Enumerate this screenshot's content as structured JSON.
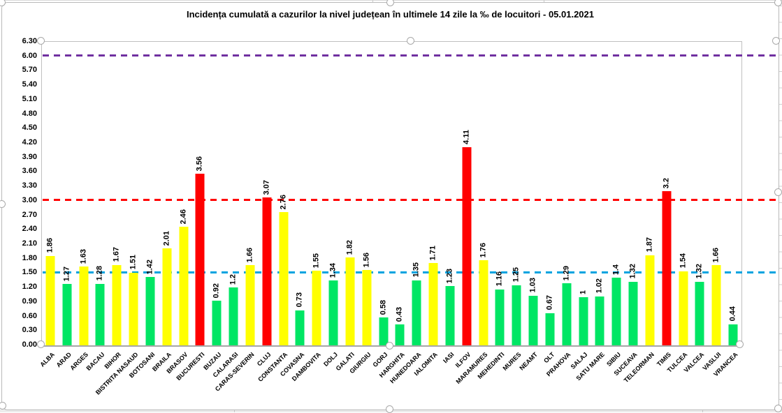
{
  "chart_data": {
    "type": "bar",
    "title": "Incidența cumulată a cazurilor la nivel județean în ultimele 14 zile la ‰ de locuitori - 05.01.2021",
    "xlabel": "",
    "ylabel": "",
    "ylim": [
      0,
      6.3
    ],
    "ytick_step": 0.3,
    "grid": false,
    "legend": false,
    "categories": [
      "ALBA",
      "ARAD",
      "ARGES",
      "BACAU",
      "BIHOR",
      "BISTRITA NASAUD",
      "BOTOSANI",
      "BRAILA",
      "BRASOV",
      "BUCURESTI",
      "BUZAU",
      "CALARASI",
      "CARAS-SEVERIN",
      "CLUJ",
      "CONSTANTA",
      "COVASNA",
      "DAMBOVITA",
      "DOLJ",
      "GALATI",
      "GIURGIU",
      "GORJ",
      "HARGHITA",
      "HUNEDOARA",
      "IALOMITA",
      "IASI",
      "ILFOV",
      "MARAMURES",
      "MEHEDINTI",
      "MURES",
      "NEAMT",
      "OLT",
      "PRAHOVA",
      "SALAJ",
      "SATU MARE",
      "SIBIU",
      "SUCEAVA",
      "TELEORMAN",
      "TIMIS",
      "TULCEA",
      "VALCEA",
      "VASLUI",
      "VRANCEA"
    ],
    "values": [
      1.86,
      1.27,
      1.63,
      1.28,
      1.67,
      1.51,
      1.42,
      2.01,
      2.46,
      3.56,
      0.92,
      1.2,
      1.66,
      3.07,
      2.76,
      0.73,
      1.55,
      1.34,
      1.82,
      1.56,
      0.58,
      0.43,
      1.35,
      1.71,
      1.23,
      4.11,
      1.76,
      1.16,
      1.25,
      1.03,
      0.67,
      1.29,
      1,
      1.02,
      1.4,
      1.32,
      1.87,
      3.2,
      1.54,
      1.32,
      1.66,
      0.44
    ],
    "levels": [
      "yellow",
      "green",
      "yellow",
      "green",
      "yellow",
      "yellow",
      "green",
      "yellow",
      "yellow",
      "red",
      "green",
      "green",
      "yellow",
      "red",
      "yellow",
      "green",
      "yellow",
      "green",
      "yellow",
      "yellow",
      "green",
      "green",
      "green",
      "yellow",
      "green",
      "red",
      "yellow",
      "green",
      "green",
      "green",
      "green",
      "green",
      "green",
      "green",
      "green",
      "green",
      "yellow",
      "red",
      "yellow",
      "green",
      "yellow",
      "green"
    ],
    "palette": {
      "green": "#00e664",
      "yellow": "#ffff00",
      "red": "#ff0000"
    },
    "thresholds": [
      {
        "label": "6.00",
        "value": 6.0,
        "color": "#7030a0"
      },
      {
        "label": "3.00",
        "value": 3.0,
        "color": "#ff0000"
      },
      {
        "label": "1.50",
        "value": 1.5,
        "color": "#00a3e0"
      }
    ],
    "legend_position": "none"
  }
}
